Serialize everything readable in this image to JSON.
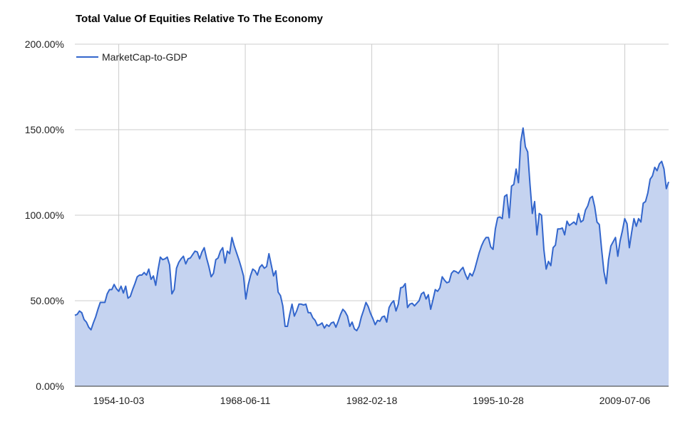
{
  "chart_data": {
    "type": "area",
    "title": "Total Value Of Equities Relative To The Economy",
    "xlabel": "",
    "ylabel": "",
    "x_range": [
      1950.0,
      2014.25
    ],
    "ylim": [
      0,
      200
    ],
    "y_ticks": [
      {
        "value": 0,
        "label": "0.00%"
      },
      {
        "value": 50,
        "label": "50.00%"
      },
      {
        "value": 100,
        "label": "100.00%"
      },
      {
        "value": 150,
        "label": "150.00%"
      },
      {
        "value": 200,
        "label": "200.00%"
      }
    ],
    "x_ticks": [
      {
        "value": 1954.75,
        "label": "1954-10-03"
      },
      {
        "value": 1968.44,
        "label": "1968-06-11"
      },
      {
        "value": 1982.13,
        "label": "1982-02-18"
      },
      {
        "value": 1995.82,
        "label": "1995-10-28"
      },
      {
        "value": 2009.51,
        "label": "2009-07-06"
      }
    ],
    "grid": true,
    "legend_position": "top-left",
    "series": [
      {
        "name": "MarketCap-to-GDP",
        "line_color": "#3366cc",
        "fill_color": "#c5d3f0",
        "x": [
          1950.0,
          1950.25,
          1950.5,
          1950.75,
          1951.0,
          1951.25,
          1951.5,
          1951.75,
          1952.0,
          1952.25,
          1952.5,
          1952.75,
          1953.0,
          1953.25,
          1953.5,
          1953.75,
          1954.0,
          1954.25,
          1954.5,
          1954.75,
          1955.0,
          1955.25,
          1955.5,
          1955.75,
          1956.0,
          1956.25,
          1956.5,
          1956.75,
          1957.0,
          1957.25,
          1957.5,
          1957.75,
          1958.0,
          1958.25,
          1958.5,
          1958.75,
          1959.0,
          1959.25,
          1959.5,
          1959.75,
          1960.0,
          1960.25,
          1960.5,
          1960.75,
          1961.0,
          1961.25,
          1961.5,
          1961.75,
          1962.0,
          1962.25,
          1962.5,
          1962.75,
          1963.0,
          1963.25,
          1963.5,
          1963.75,
          1964.0,
          1964.25,
          1964.5,
          1964.75,
          1965.0,
          1965.25,
          1965.5,
          1965.75,
          1966.0,
          1966.25,
          1966.5,
          1966.75,
          1967.0,
          1967.25,
          1967.5,
          1967.75,
          1968.0,
          1968.25,
          1968.5,
          1968.75,
          1969.0,
          1969.25,
          1969.5,
          1969.75,
          1970.0,
          1970.25,
          1970.5,
          1970.75,
          1971.0,
          1971.25,
          1971.5,
          1971.75,
          1972.0,
          1972.25,
          1972.5,
          1972.75,
          1973.0,
          1973.25,
          1973.5,
          1973.75,
          1974.0,
          1974.25,
          1974.5,
          1974.75,
          1975.0,
          1975.25,
          1975.5,
          1975.75,
          1976.0,
          1976.25,
          1976.5,
          1976.75,
          1977.0,
          1977.25,
          1977.5,
          1977.75,
          1978.0,
          1978.25,
          1978.5,
          1978.75,
          1979.0,
          1979.25,
          1979.5,
          1979.75,
          1980.0,
          1980.25,
          1980.5,
          1980.75,
          1981.0,
          1981.25,
          1981.5,
          1981.75,
          1982.0,
          1982.25,
          1982.5,
          1982.75,
          1983.0,
          1983.25,
          1983.5,
          1983.75,
          1984.0,
          1984.25,
          1984.5,
          1984.75,
          1985.0,
          1985.25,
          1985.5,
          1985.75,
          1986.0,
          1986.25,
          1986.5,
          1986.75,
          1987.0,
          1987.25,
          1987.5,
          1987.75,
          1988.0,
          1988.25,
          1988.5,
          1988.75,
          1989.0,
          1989.25,
          1989.5,
          1989.75,
          1990.0,
          1990.25,
          1990.5,
          1990.75,
          1991.0,
          1991.25,
          1991.5,
          1991.75,
          1992.0,
          1992.25,
          1992.5,
          1992.75,
          1993.0,
          1993.25,
          1993.5,
          1993.75,
          1994.0,
          1994.25,
          1994.5,
          1994.75,
          1995.0,
          1995.25,
          1995.5,
          1995.75,
          1996.0,
          1996.25,
          1996.5,
          1996.75,
          1997.0,
          1997.25,
          1997.5,
          1997.75,
          1998.0,
          1998.25,
          1998.5,
          1998.75,
          1999.0,
          1999.25,
          1999.5,
          1999.75,
          2000.0,
          2000.25,
          2000.5,
          2000.75,
          2001.0,
          2001.25,
          2001.5,
          2001.75,
          2002.0,
          2002.25,
          2002.5,
          2002.75,
          2003.0,
          2003.25,
          2003.5,
          2003.75,
          2004.0,
          2004.25,
          2004.5,
          2004.75,
          2005.0,
          2005.25,
          2005.5,
          2005.75,
          2006.0,
          2006.25,
          2006.5,
          2006.75,
          2007.0,
          2007.25,
          2007.5,
          2007.75,
          2008.0,
          2008.25,
          2008.5,
          2008.75,
          2009.0,
          2009.25,
          2009.5,
          2009.75,
          2010.0,
          2010.25,
          2010.5,
          2010.75,
          2011.0,
          2011.25,
          2011.5,
          2011.75,
          2012.0,
          2012.25,
          2012.5,
          2012.75,
          2013.0,
          2013.25,
          2013.5,
          2013.75,
          2014.0,
          2014.25
        ],
        "values": [
          41.5,
          42.0,
          44.0,
          43.0,
          39.0,
          37.5,
          34.5,
          33.0,
          37.0,
          40.5,
          45.0,
          49.0,
          49.0,
          49.0,
          54.0,
          56.5,
          56.5,
          59.5,
          57.0,
          55.5,
          58.5,
          54.5,
          58.5,
          51.5,
          52.5,
          56.5,
          60.0,
          64.0,
          65.0,
          65.0,
          66.5,
          65.0,
          68.5,
          62.5,
          64.5,
          59.0,
          68.0,
          75.5,
          74.0,
          74.5,
          75.5,
          71.0,
          54.0,
          56.5,
          69.0,
          72.5,
          74.5,
          76.0,
          71.5,
          74.5,
          75.0,
          77.0,
          79.0,
          78.5,
          74.5,
          78.5,
          81.0,
          75.0,
          70.0,
          64.0,
          66.0,
          74.0,
          75.0,
          79.0,
          81.0,
          72.0,
          79.0,
          77.5,
          87.0,
          82.0,
          78.0,
          74.0,
          69.5,
          64.5,
          51.0,
          59.0,
          64.5,
          68.5,
          67.5,
          65.0,
          69.5,
          71.0,
          69.0,
          70.0,
          77.5,
          71.0,
          64.5,
          67.5,
          55.0,
          53.0,
          47.0,
          35.0,
          35.0,
          42.0,
          48.0,
          41.0,
          44.0,
          48.0,
          48.0,
          47.5,
          48.0,
          43.0,
          43.0,
          40.0,
          38.5,
          35.5,
          36.0,
          37.0,
          34.0,
          36.0,
          35.0,
          37.0,
          37.5,
          34.5,
          38.0,
          42.0,
          45.0,
          43.5,
          41.0,
          35.0,
          37.5,
          33.5,
          32.5,
          35.0,
          40.5,
          44.5,
          49.0,
          46.5,
          42.5,
          39.5,
          36.0,
          38.5,
          38.0,
          40.5,
          41.0,
          37.5,
          46.0,
          48.5,
          50.0,
          44.0,
          48.0,
          57.5,
          58.0,
          60.0,
          46.0,
          48.0,
          48.5,
          47.0,
          48.5,
          50.0,
          54.0,
          55.0,
          51.0,
          53.5,
          45.0,
          50.5,
          56.5,
          55.5,
          57.5,
          64.0,
          62.0,
          60.5,
          61.0,
          66.0,
          67.5,
          67.0,
          66.0,
          68.0,
          69.5,
          65.5,
          62.5,
          66.0,
          64.5,
          68.0,
          73.0,
          78.0,
          82.0,
          85.0,
          87.0,
          87.0,
          81.5,
          80.0,
          92.0,
          98.5,
          99.0,
          98.0,
          111.0,
          112.0,
          98.5,
          117.0,
          118.0,
          127.0,
          119.0,
          143.0,
          151.0,
          140.0,
          137.0,
          118.0,
          101.0,
          108.0,
          88.5,
          101.0,
          100.0,
          80.0,
          68.5,
          73.0,
          70.5,
          81.0,
          82.5,
          92.0,
          92.0,
          92.5,
          88.5,
          96.5,
          94.0,
          95.0,
          96.0,
          94.5,
          101.0,
          96.0,
          97.0,
          103.0,
          105.5,
          110.0,
          111.0,
          105.0,
          96.0,
          94.5,
          80.0,
          67.0,
          60.0,
          74.0,
          82.0,
          84.5,
          87.0,
          76.0,
          85.0,
          91.0,
          98.0,
          95.0,
          81.0,
          90.0,
          98.0,
          93.5,
          98.0,
          96.0,
          107.0,
          108.0,
          113.0,
          121.0,
          123.0,
          128.0,
          126.0,
          130.0,
          131.5,
          127.0,
          115.5,
          119.5
        ]
      }
    ]
  }
}
